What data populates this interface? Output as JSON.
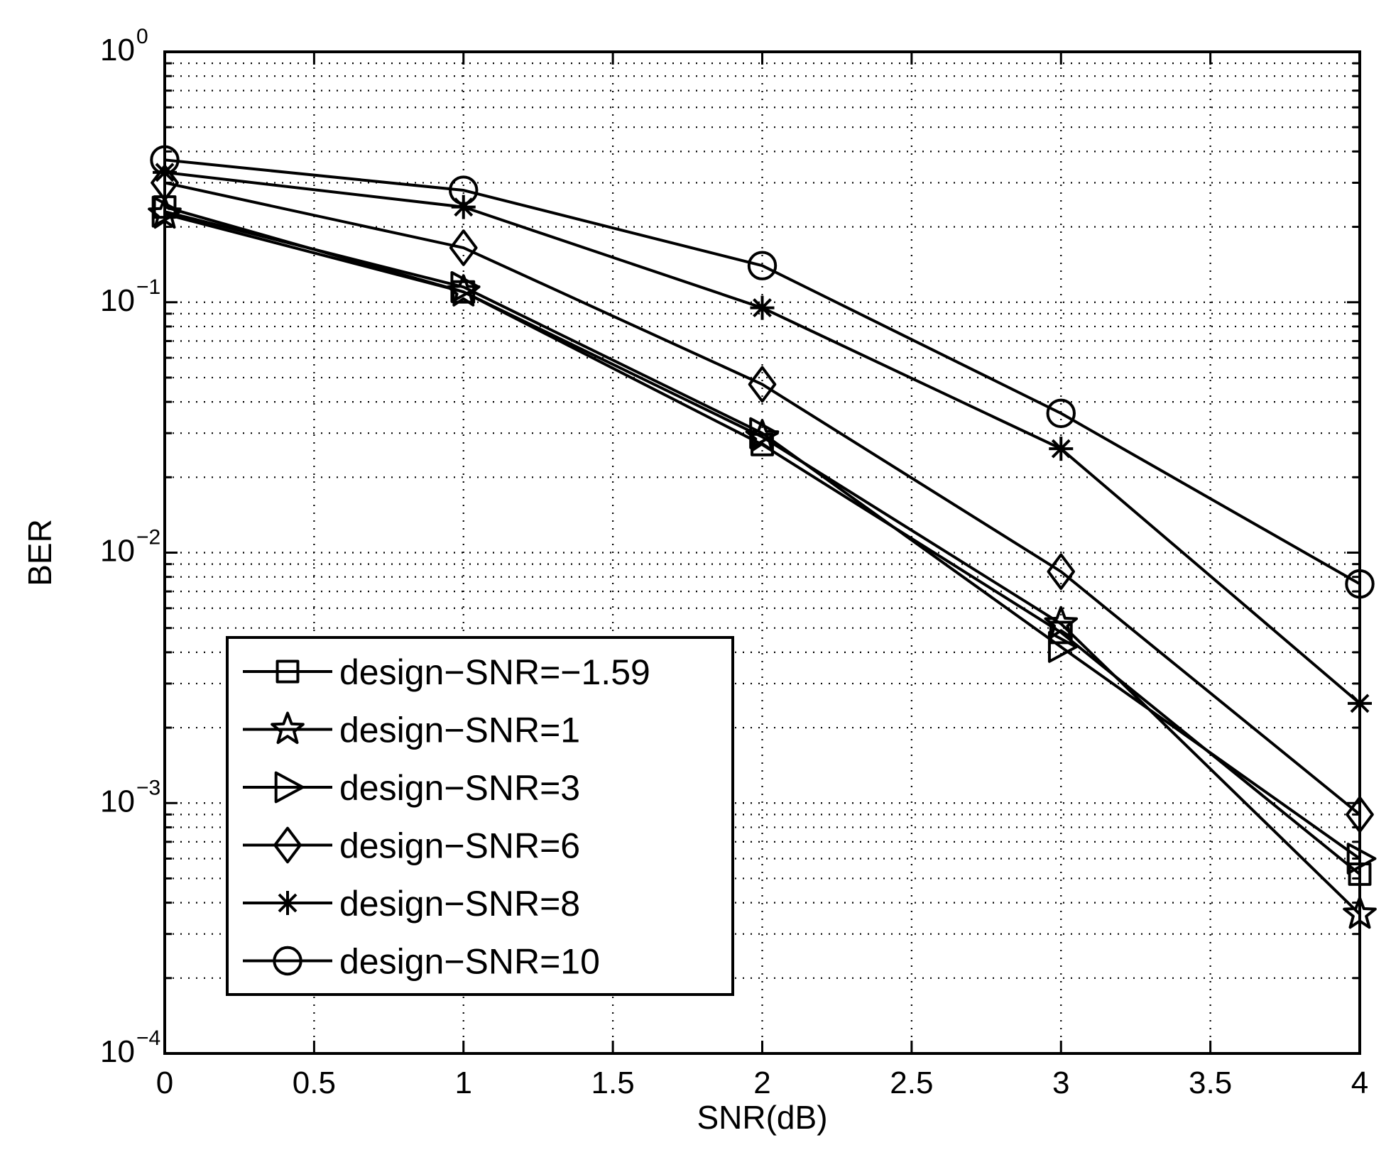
{
  "chart_data": {
    "type": "line",
    "title": "",
    "xlabel": "SNR(dB)",
    "ylabel": "BER",
    "xlim": [
      0,
      4
    ],
    "ylim": [
      0.0001,
      1
    ],
    "yscale": "log",
    "grid": true,
    "legend_position": "bottom-left",
    "x_ticks": [
      "0",
      "0.5",
      "1",
      "1.5",
      "2",
      "2.5",
      "3",
      "3.5",
      "4"
    ],
    "x_tick_values": [
      0,
      0.5,
      1,
      1.5,
      2,
      2.5,
      3,
      3.5,
      4
    ],
    "y_ticks": [
      {
        "value": 1,
        "base": "10",
        "exp": "0"
      },
      {
        "value": 0.1,
        "base": "10",
        "exp": "−1"
      },
      {
        "value": 0.01,
        "base": "10",
        "exp": "−2"
      },
      {
        "value": 0.001,
        "base": "10",
        "exp": "−3"
      },
      {
        "value": 0.0001,
        "base": "10",
        "exp": "−4"
      }
    ],
    "x": [
      0,
      1,
      2,
      3,
      4
    ],
    "series": [
      {
        "name": "design−SNR=−1.59",
        "marker": "square",
        "values": [
          0.24,
          0.11,
          0.027,
          0.0048,
          0.00052
        ]
      },
      {
        "name": "design−SNR=1",
        "marker": "star",
        "values": [
          0.225,
          0.11,
          0.029,
          0.0052,
          0.00036
        ]
      },
      {
        "name": "design−SNR=3",
        "marker": "triangle-right",
        "values": [
          0.23,
          0.115,
          0.03,
          0.0042,
          0.0006
        ]
      },
      {
        "name": "design−SNR=6",
        "marker": "diamond",
        "values": [
          0.3,
          0.165,
          0.047,
          0.0084,
          0.0009
        ]
      },
      {
        "name": "design−SNR=8",
        "marker": "asterisk",
        "values": [
          0.33,
          0.24,
          0.095,
          0.026,
          0.0025
        ]
      },
      {
        "name": "design−SNR=10",
        "marker": "circle",
        "values": [
          0.37,
          0.28,
          0.14,
          0.036,
          0.0075
        ]
      }
    ]
  }
}
